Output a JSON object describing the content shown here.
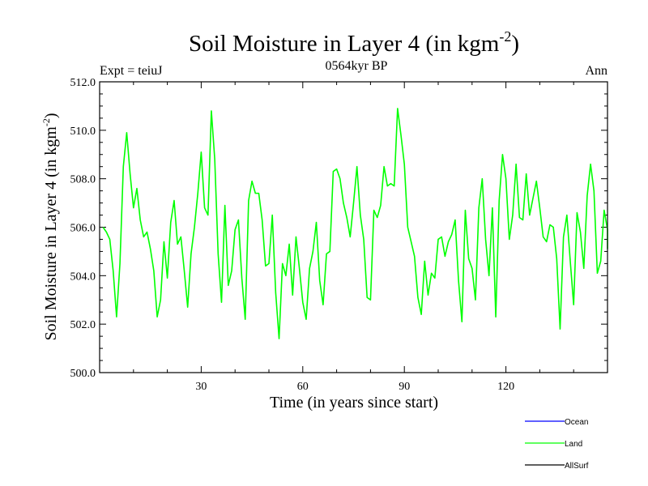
{
  "chart_data": {
    "type": "line",
    "title": "Soil Moisture in Layer 4 (in kgm",
    "title_sup": "-2",
    "title_end": ")",
    "subtitle_left": "Expt = teiuJ",
    "subtitle_center": "0564kyr BP",
    "subtitle_right": "Ann",
    "xlabel": "Time (in years since start)",
    "ylabel": "Soil Moisture in Layer 4 (in kgm",
    "ylabel_sup": "-2",
    "ylabel_end": ")",
    "xlim": [
      0,
      150
    ],
    "ylim": [
      500,
      512
    ],
    "x_ticks": [
      30,
      60,
      90,
      120
    ],
    "x_tick_labels": [
      "30",
      "60",
      "90",
      "120"
    ],
    "y_ticks": [
      500,
      502,
      504,
      506,
      508,
      510,
      512
    ],
    "y_tick_labels": [
      "500.0",
      "502.0",
      "504.0",
      "506.0",
      "508.0",
      "510.0",
      "512.0"
    ],
    "legend": [
      {
        "name": "Ocean",
        "color": "#0000ff"
      },
      {
        "name": "Land",
        "color": "#00ff00"
      },
      {
        "name": "AllSurf",
        "color": "#000000"
      }
    ],
    "series": [
      {
        "name": "Land",
        "color": "#00ff00",
        "x_start": 1,
        "values": [
          506.0,
          505.8,
          505.5,
          504.2,
          502.3,
          504.5,
          508.5,
          509.9,
          508.2,
          506.8,
          507.6,
          506.3,
          505.6,
          505.8,
          505.1,
          504.2,
          502.3,
          503.0,
          505.4,
          503.9,
          506.2,
          507.1,
          505.3,
          505.6,
          504.2,
          502.7,
          504.9,
          506.0,
          507.4,
          509.1,
          506.8,
          506.5,
          510.8,
          508.8,
          504.9,
          502.9,
          506.9,
          503.6,
          504.2,
          505.9,
          506.3,
          503.9,
          502.2,
          507.1,
          507.9,
          507.4,
          507.4,
          506.3,
          504.4,
          504.5,
          506.5,
          503.3,
          501.4,
          504.5,
          504.0,
          505.3,
          503.2,
          505.6,
          504.3,
          502.9,
          502.2,
          504.3,
          505.0,
          506.2,
          503.8,
          502.8,
          504.9,
          505.0,
          508.3,
          508.4,
          508.0,
          507.0,
          506.4,
          505.6,
          507.0,
          508.5,
          506.5,
          505.5,
          503.1,
          503.0,
          506.7,
          506.4,
          506.9,
          508.5,
          507.7,
          507.8,
          507.7,
          510.9,
          509.8,
          508.6,
          506.0,
          505.4,
          504.8,
          503.1,
          502.4,
          504.6,
          503.2,
          504.1,
          503.9,
          505.5,
          505.6,
          504.8,
          505.4,
          505.7,
          506.3,
          503.8,
          502.1,
          506.7,
          504.7,
          504.3,
          503.0,
          506.8,
          508.0,
          505.5,
          504.0,
          506.8,
          502.3,
          507.1,
          509.0,
          508.0,
          505.5,
          506.5,
          508.6,
          506.4,
          506.3,
          508.2,
          506.5,
          507.2,
          507.9,
          506.8,
          505.6,
          505.4,
          506.1,
          506.0,
          504.7,
          501.8,
          505.6,
          506.5,
          504.6,
          502.8,
          506.6,
          505.8,
          504.3,
          507.3,
          508.6,
          507.5,
          504.1,
          504.6,
          506.7,
          505.9,
          505.1
        ]
      }
    ]
  }
}
